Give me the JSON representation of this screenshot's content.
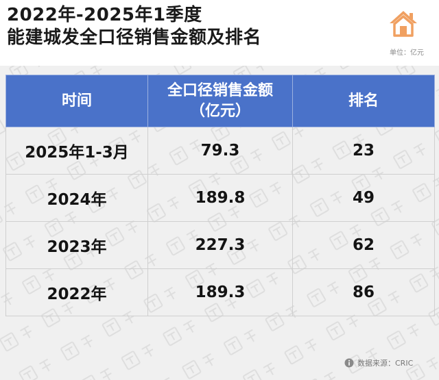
{
  "title": {
    "line1": "2022年-2025年1季度",
    "line2": "能建城发全口径销售金额及排名"
  },
  "logo_icon": "house-icon",
  "unit_label": "单位：亿元",
  "table": {
    "headers": [
      "时间",
      "全口径销售金额\n（亿元）",
      "排名"
    ],
    "rows": [
      {
        "period": "2025年1-3月",
        "amount": "79.3",
        "rank": "23"
      },
      {
        "period": "2024年",
        "amount": "189.8",
        "rank": "49"
      },
      {
        "period": "2023年",
        "amount": "227.3",
        "rank": "62"
      },
      {
        "period": "2022年",
        "amount": "189.3",
        "rank": "86"
      }
    ]
  },
  "source": {
    "icon": "info-icon",
    "text": "数据来源：CRIC"
  },
  "colors": {
    "header_bg": "#4a72c9",
    "logo": "#f0a061",
    "panel_bg": "#f0f0f0"
  }
}
